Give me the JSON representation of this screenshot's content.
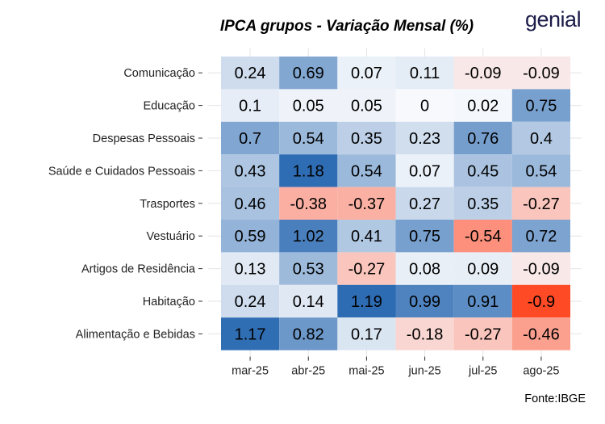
{
  "chart_data": {
    "type": "heatmap",
    "title": "IPCA grupos - Variação Mensal (%)",
    "x": [
      "mar-25",
      "abr-25",
      "mai-25",
      "jun-25",
      "jul-25",
      "ago-25"
    ],
    "y": [
      "Comunicação",
      "Educação",
      "Despesas Pessoais",
      "Saúde e Cuidados Pessoais",
      "Trasportes",
      "Vestuário",
      "Artigos de Residência",
      "Habitação",
      "Alimentação e Bebidas"
    ],
    "values": [
      [
        0.24,
        0.69,
        0.07,
        0.11,
        -0.09,
        -0.09
      ],
      [
        0.1,
        0.05,
        0.05,
        0,
        0.02,
        0.75
      ],
      [
        0.7,
        0.54,
        0.35,
        0.23,
        0.76,
        0.4
      ],
      [
        0.43,
        1.18,
        0.54,
        0.07,
        0.45,
        0.54
      ],
      [
        0.46,
        -0.38,
        -0.37,
        0.27,
        0.35,
        -0.27
      ],
      [
        0.59,
        1.02,
        0.41,
        0.75,
        -0.54,
        0.72
      ],
      [
        0.13,
        0.53,
        -0.27,
        0.08,
        0.09,
        -0.09
      ],
      [
        0.24,
        0.14,
        1.19,
        0.99,
        0.91,
        -0.9
      ],
      [
        1.17,
        0.82,
        0.17,
        -0.18,
        -0.27,
        -0.46
      ]
    ],
    "color_scale": {
      "low": "#ff4a26",
      "mid": "#f7f9fc",
      "high": "#2b6ab2",
      "midpoint": 0,
      "min": -0.9,
      "max": 1.2
    },
    "grid": true,
    "legend": "none"
  },
  "brand": {
    "logo_text": "genial",
    "logo_color": "#1b1b4a"
  },
  "source_note": "Fonte:IBGE"
}
